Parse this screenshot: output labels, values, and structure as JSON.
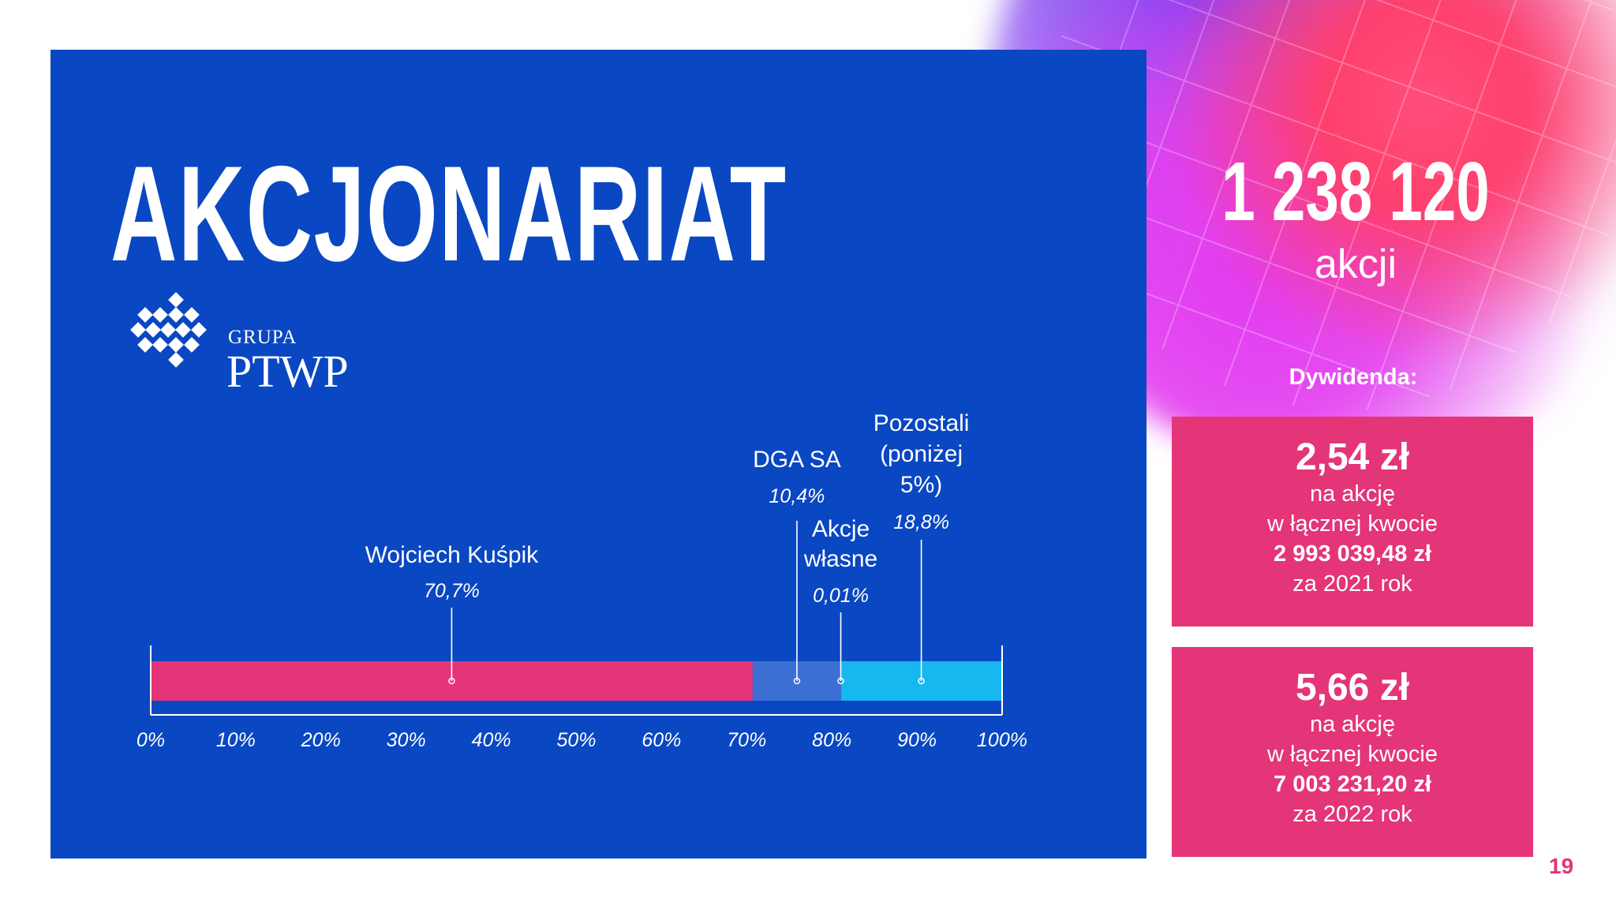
{
  "slide": {
    "title": "AKCJONARIAT",
    "page_number": "19",
    "logo": {
      "line1": "GRUPA",
      "line2": "PTWP"
    }
  },
  "shares": {
    "value": "1 238 120",
    "label": "akcji"
  },
  "dividend": {
    "title": "Dywidenda:",
    "cards": [
      {
        "amount": "2,54 zł",
        "line1": "na akcję",
        "line2": "w łącznej kwocie",
        "total": "2 993 039,48 zł",
        "year": "za 2021 rok"
      },
      {
        "amount": "5,66 zł",
        "line1": "na akcję",
        "line2": "w łącznej kwocie",
        "total": "7 003 231,20 zł",
        "year": "za 2022 rok"
      }
    ]
  },
  "colors": {
    "panel": "#0a47c2",
    "accent_pink": "#e33578",
    "segment_mid": "#3b6fd4",
    "segment_light": "#17b7f0"
  },
  "chart_data": {
    "type": "bar",
    "orientation": "horizontal-stacked",
    "xlim": [
      0,
      100
    ],
    "ticks": [
      "0%",
      "10%",
      "20%",
      "30%",
      "40%",
      "50%",
      "60%",
      "70%",
      "80%",
      "90%",
      "100%"
    ],
    "series": [
      {
        "name": [
          "Wojciech Kuśpik"
        ],
        "value": 70.7,
        "label": "70,7%",
        "color": "#e33578"
      },
      {
        "name": [
          "DGA SA"
        ],
        "value": 10.4,
        "label": "10,4%",
        "color": "#3b6fd4"
      },
      {
        "name": [
          "Akcje",
          "własne"
        ],
        "value": 0.01,
        "label": "0,01%",
        "color": "#3b6fd4"
      },
      {
        "name": [
          "Pozostali",
          "(poniżej",
          "5%)"
        ],
        "value": 18.8,
        "label": "18,8%",
        "color": "#17b7f0"
      }
    ]
  }
}
